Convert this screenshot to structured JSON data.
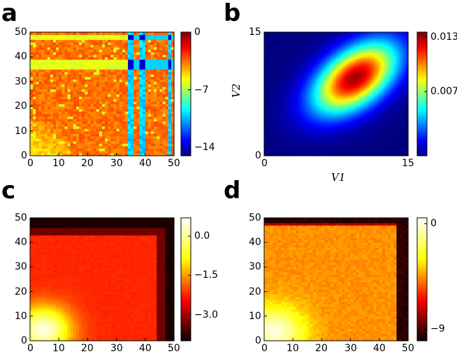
{
  "figure": {
    "panels": [
      {
        "key": "a",
        "label": "a"
      },
      {
        "key": "b",
        "label": "b"
      },
      {
        "key": "c",
        "label": "c"
      },
      {
        "key": "d",
        "label": "d"
      }
    ]
  },
  "colormaps": {
    "jet": [
      "#00007f",
      "#0000ff",
      "#007fff",
      "#00ffff",
      "#7fff7f",
      "#ffff00",
      "#ff7f00",
      "#ff0000",
      "#7f0000"
    ],
    "hot": [
      "#0b0000",
      "#7f0000",
      "#ff0000",
      "#ff7f00",
      "#ffff00",
      "#ffff80",
      "#ffffff"
    ]
  },
  "chart_data": [
    {
      "id": "a",
      "type": "heatmap",
      "panel_label": "a",
      "xlabel": "",
      "ylabel": "",
      "xlim": [
        0,
        50
      ],
      "ylim": [
        0,
        50
      ],
      "xticks": [
        "0",
        "10",
        "20",
        "30",
        "40",
        "50"
      ],
      "yticks": [
        "0",
        "10",
        "20",
        "30",
        "40",
        "50"
      ],
      "grid": "50x50",
      "colormap": "jet",
      "colorbar": {
        "min": -15,
        "max": 0,
        "ticks": [
          {
            "value": 0,
            "label": "0"
          },
          {
            "value": -7,
            "label": "−7"
          },
          {
            "value": -14,
            "label": "−14"
          }
        ]
      },
      "features": {
        "background": -3.5,
        "band_cols": [
          34,
          35,
          38,
          39,
          48
        ],
        "band_value": -10,
        "band_rows": [
          35,
          36,
          37,
          38,
          47,
          48
        ],
        "low_cells_value": -14
      }
    },
    {
      "id": "b",
      "type": "heatmap",
      "panel_label": "b",
      "xlabel": "V1",
      "ylabel": "V2",
      "xlim": [
        0,
        15
      ],
      "ylim": [
        0,
        15
      ],
      "xticks": [
        "0",
        "15"
      ],
      "yticks": [
        "0",
        "15"
      ],
      "colormap": "jet",
      "colorbar": {
        "min": 0,
        "max": 0.0135,
        "ticks": [
          {
            "value": 0.013,
            "label": "0.013"
          },
          {
            "value": 0.007,
            "label": "0.007"
          }
        ]
      },
      "features": {
        "peak": 0.013,
        "center": [
          9.5,
          9.5
        ],
        "sigma": [
          3.0,
          3.0
        ],
        "correlation": 0.5
      }
    },
    {
      "id": "c",
      "type": "heatmap",
      "panel_label": "c",
      "xlabel": "",
      "ylabel": "",
      "xlim": [
        0,
        50
      ],
      "ylim": [
        0,
        50
      ],
      "xticks": [
        "0",
        "10",
        "20",
        "30",
        "40",
        "50"
      ],
      "yticks": [
        "0",
        "10",
        "20",
        "30",
        "40",
        "50"
      ],
      "grid": "50x50",
      "colormap": "hot",
      "colorbar": {
        "min": -4.0,
        "max": 0.7,
        "ticks": [
          {
            "value": 0.0,
            "label": "0.0"
          },
          {
            "value": -1.5,
            "label": "−1.5"
          },
          {
            "value": -3.0,
            "label": "−3.0"
          }
        ]
      },
      "features": {
        "corner_value": 0.5,
        "interior_value": -2.2,
        "edge_value": -3.9
      }
    },
    {
      "id": "d",
      "type": "heatmap",
      "panel_label": "d",
      "xlabel": "",
      "ylabel": "",
      "xlim": [
        0,
        50
      ],
      "ylim": [
        0,
        50
      ],
      "xticks": [
        "0",
        "10",
        "20",
        "30",
        "40",
        "50"
      ],
      "yticks": [
        "0",
        "10",
        "20",
        "30",
        "40",
        "50"
      ],
      "grid": "50x50",
      "colormap": "hot",
      "colorbar": {
        "min": -10,
        "max": 0.5,
        "ticks": [
          {
            "value": 0,
            "label": "0"
          },
          {
            "value": -9,
            "label": "−9"
          }
        ]
      },
      "features": {
        "corner_value": 0,
        "interior_value": -4.5,
        "edge_value": -9.5
      }
    }
  ]
}
